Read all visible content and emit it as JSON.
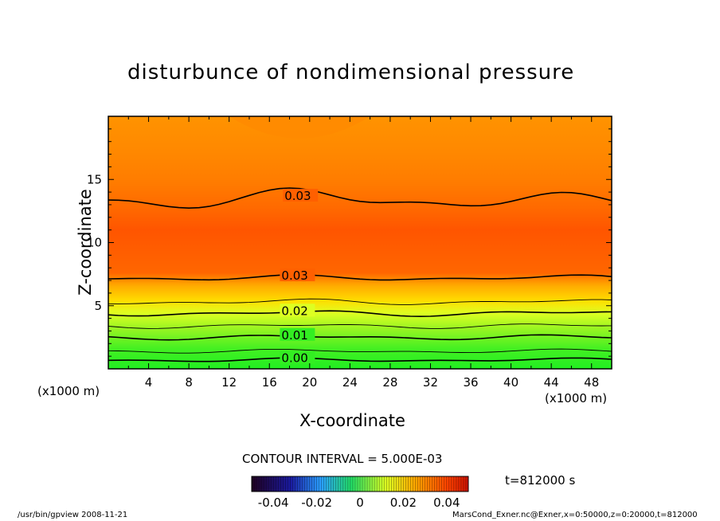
{
  "chart_data": {
    "type": "contour",
    "title": "disturbunce of nondimensional pressure",
    "xlabel": "X-coordinate",
    "ylabel": "Z-coordinate",
    "x_unit_left": "(x1000 m)",
    "x_unit_right": "(x1000 m)",
    "xlim": [
      0,
      50
    ],
    "ylim": [
      0,
      20
    ],
    "xticks": [
      "4",
      "8",
      "12",
      "16",
      "20",
      "24",
      "28",
      "32",
      "36",
      "40",
      "44",
      "48"
    ],
    "xtick_values": [
      4,
      8,
      12,
      16,
      20,
      24,
      28,
      32,
      36,
      40,
      44,
      48
    ],
    "yticks": [
      "5",
      "10",
      "15"
    ],
    "ytick_values": [
      5,
      10,
      15
    ],
    "contour_interval_text": "CONTOUR INTERVAL = 5.000E-03",
    "time_text": "t=812000 s",
    "contour_levels": [
      {
        "label": "0.00",
        "base_z": 0.7,
        "amp": 0.2
      },
      {
        "label": "",
        "base_z": 1.4,
        "amp": 0.2
      },
      {
        "label": "0.01",
        "base_z": 2.5,
        "amp": 0.25
      },
      {
        "label": "",
        "base_z": 3.4,
        "amp": 0.25
      },
      {
        "label": "0.02",
        "base_z": 4.4,
        "amp": 0.3
      },
      {
        "label": "",
        "base_z": 5.3,
        "amp": 0.3
      },
      {
        "label": "0.03",
        "base_z": 7.2,
        "amp": 0.3
      },
      {
        "label": "0.03",
        "base_z": 13.3,
        "amp": 0.8
      }
    ],
    "colorbar": {
      "tick_labels": [
        "-0.04",
        "-0.02",
        "0",
        "0.02",
        "0.04"
      ],
      "tick_values": [
        -0.04,
        -0.02,
        0,
        0.02,
        0.04
      ],
      "range": [
        -0.05,
        0.05
      ]
    },
    "grid": false
  },
  "footer": {
    "left": "/usr/bin/gpview   2008-11-21",
    "right": "MarsCond_Exner.nc@Exner,x=0:50000,z=0:20000,t=812000"
  },
  "colors": {
    "green": "#22ee22",
    "yellow": "#eeff22",
    "orange": "#ff8800",
    "red_orange": "#ff5500"
  }
}
